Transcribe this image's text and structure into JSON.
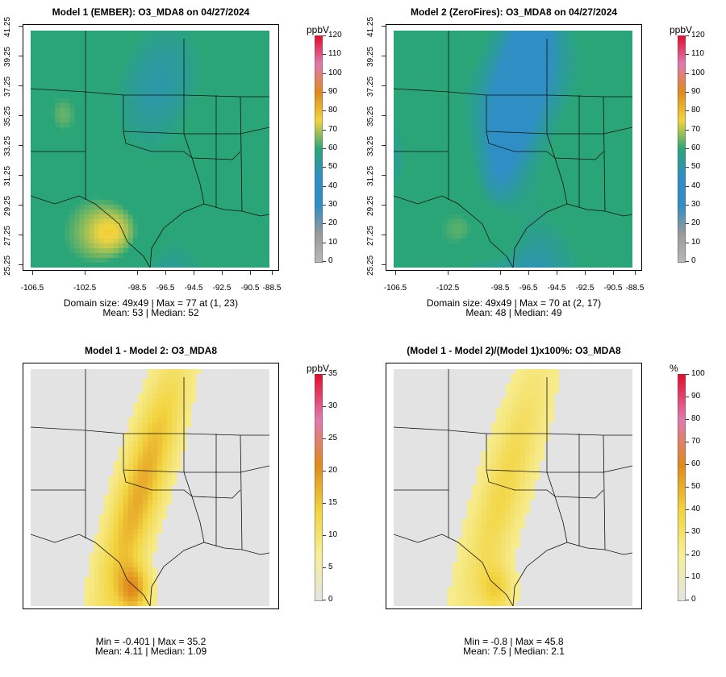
{
  "colors": {
    "low": "#b9b9b9",
    "green": "#2aa578",
    "mid": "#2f8fc5",
    "yellow": "#f2d43e",
    "orange": "#e08a1c",
    "red": "#e60b2a",
    "pink": "#e07ab0"
  },
  "panels": [
    {
      "title": "Model 1 (EMBER): O3_MDA8 on 04/27/2024",
      "unit": "ppbV",
      "scale": [
        "0",
        "10",
        "20",
        "30",
        "40",
        "50",
        "60",
        "70",
        "80",
        "90",
        "100",
        "110",
        "120"
      ],
      "stats_line1": "Domain size: 49x49 | Max = 77 at (1, 23)",
      "stats_line2": "Mean: 53 |  Median: 52",
      "show_axes": true,
      "field": "conc1"
    },
    {
      "title": "Model 2 (ZeroFires): O3_MDA8 on 04/27/2024",
      "unit": "ppbV",
      "scale": [
        "0",
        "10",
        "20",
        "30",
        "40",
        "50",
        "60",
        "70",
        "80",
        "90",
        "100",
        "110",
        "120"
      ],
      "stats_line1": "Domain size: 49x49 | Max = 70 at (2, 17)",
      "stats_line2": "Mean: 48 |  Median: 49",
      "show_axes": true,
      "field": "conc2"
    },
    {
      "title": "Model 1 - Model 2: O3_MDA8",
      "unit": "ppbV",
      "scale": [
        "0",
        "5",
        "10",
        "15",
        "20",
        "25",
        "30",
        "35"
      ],
      "stats_line1": "Min = -0.401 | Max = 35.2",
      "stats_line2": "Mean: 4.11 |  Median: 1.09",
      "show_axes": false,
      "field": "diff"
    },
    {
      "title": "(Model 1 - Model 2)/(Model 1)x100%: O3_MDA8",
      "unit": "%",
      "scale": [
        "0",
        "10",
        "20",
        "30",
        "40",
        "50",
        "60",
        "70",
        "80",
        "90",
        "100"
      ],
      "stats_line1": "Min = -0.8 | Max = 45.8",
      "stats_line2": "Mean: 7.5 |  Median: 2.1",
      "show_axes": false,
      "field": "pct"
    }
  ],
  "x_ticks": [
    "-106.5",
    "-102.5",
    "-98.5",
    "-96.5",
    "-94.5",
    "-92.5",
    "-90.5",
    "-88.5"
  ],
  "y_ticks": [
    "25.25",
    "27.25",
    "29.25",
    "31.25",
    "33.25",
    "35.25",
    "37.25",
    "39.25",
    "41.25"
  ]
}
